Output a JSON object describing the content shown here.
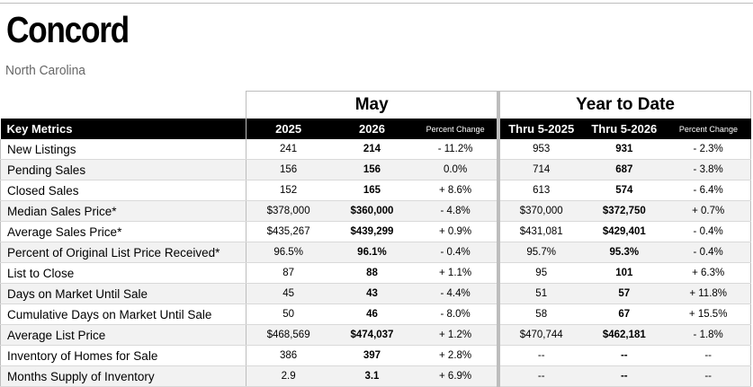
{
  "title": "Concord",
  "subtitle": "North Carolina",
  "groups": {
    "may": "May",
    "ytd": "Year to Date"
  },
  "headers": {
    "metric": "Key Metrics",
    "m_prev": "2025",
    "m_cur": "2026",
    "m_pc": "Percent Change",
    "y_prev": "Thru 5-2025",
    "y_cur": "Thru 5-2026",
    "y_pc": "Percent Change"
  },
  "rows": [
    {
      "label": "New Listings",
      "m_prev": "241",
      "m_cur": "214",
      "m_pc": "- 11.2%",
      "y_prev": "953",
      "y_cur": "931",
      "y_pc": "- 2.3%"
    },
    {
      "label": "Pending Sales",
      "m_prev": "156",
      "m_cur": "156",
      "m_pc": "0.0%",
      "y_prev": "714",
      "y_cur": "687",
      "y_pc": "- 3.8%"
    },
    {
      "label": "Closed Sales",
      "m_prev": "152",
      "m_cur": "165",
      "m_pc": "+ 8.6%",
      "y_prev": "613",
      "y_cur": "574",
      "y_pc": "- 6.4%"
    },
    {
      "label": "Median Sales Price*",
      "m_prev": "$378,000",
      "m_cur": "$360,000",
      "m_pc": "- 4.8%",
      "y_prev": "$370,000",
      "y_cur": "$372,750",
      "y_pc": "+ 0.7%"
    },
    {
      "label": "Average Sales Price*",
      "m_prev": "$435,267",
      "m_cur": "$439,299",
      "m_pc": "+ 0.9%",
      "y_prev": "$431,081",
      "y_cur": "$429,401",
      "y_pc": "- 0.4%"
    },
    {
      "label": "Percent of Original List Price Received*",
      "m_prev": "96.5%",
      "m_cur": "96.1%",
      "m_pc": "- 0.4%",
      "y_prev": "95.7%",
      "y_cur": "95.3%",
      "y_pc": "- 0.4%"
    },
    {
      "label": "List to Close",
      "m_prev": "87",
      "m_cur": "88",
      "m_pc": "+ 1.1%",
      "y_prev": "95",
      "y_cur": "101",
      "y_pc": "+ 6.3%"
    },
    {
      "label": "Days on Market Until Sale",
      "m_prev": "45",
      "m_cur": "43",
      "m_pc": "- 4.4%",
      "y_prev": "51",
      "y_cur": "57",
      "y_pc": "+ 11.8%"
    },
    {
      "label": "Cumulative Days on Market Until Sale",
      "m_prev": "50",
      "m_cur": "46",
      "m_pc": "- 8.0%",
      "y_prev": "58",
      "y_cur": "67",
      "y_pc": "+ 15.5%"
    },
    {
      "label": "Average List Price",
      "m_prev": "$468,569",
      "m_cur": "$474,037",
      "m_pc": "+ 1.2%",
      "y_prev": "$470,744",
      "y_cur": "$462,181",
      "y_pc": "- 1.8%"
    },
    {
      "label": "Inventory of Homes for Sale",
      "m_prev": "386",
      "m_cur": "397",
      "m_pc": "+ 2.8%",
      "y_prev": "--",
      "y_cur": "--",
      "y_pc": "--"
    },
    {
      "label": "Months Supply of Inventory",
      "m_prev": "2.9",
      "m_cur": "3.1",
      "m_pc": "+ 6.9%",
      "y_prev": "--",
      "y_cur": "--",
      "y_pc": "--"
    }
  ]
}
